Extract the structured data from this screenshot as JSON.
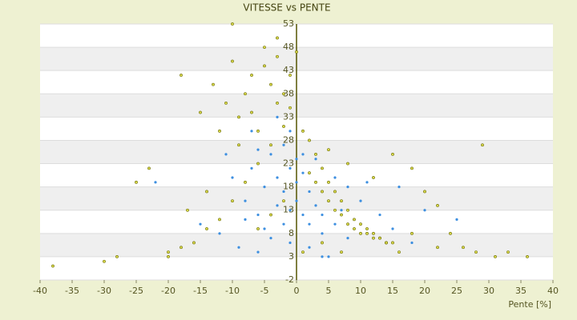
{
  "chart_data": {
    "type": "scatter",
    "title": "VITESSE vs PENTE",
    "x_label": "Pente [%]",
    "xlim": [
      -40,
      40
    ],
    "xticks": [
      -40,
      -35,
      -30,
      -25,
      -20,
      -15,
      -10,
      -5,
      0,
      5,
      10,
      15,
      20,
      25,
      30,
      35,
      40
    ],
    "ylim": [
      -2,
      53
    ],
    "yticks": [
      -2,
      3,
      8,
      13,
      18,
      23,
      28,
      33,
      38,
      43,
      48,
      53
    ],
    "series": [
      {
        "color": "#3d8fe0",
        "x": [
          -10,
          -8,
          -7,
          -6,
          -5,
          -4,
          -3,
          -3,
          -2,
          -2,
          -1,
          -1,
          0,
          0,
          1,
          1,
          2,
          2,
          3,
          3,
          4,
          4,
          5,
          6,
          7,
          8,
          9,
          10,
          12,
          -12,
          -9,
          -6,
          -4,
          -2,
          -1,
          -3,
          1,
          2,
          5,
          11,
          16,
          -22,
          20,
          25,
          13,
          -15,
          -11,
          -7,
          6,
          3,
          -5,
          -1,
          0,
          4,
          -8,
          15,
          18,
          8,
          -6,
          2
        ],
        "values": [
          20,
          15,
          22,
          12,
          18,
          25,
          14,
          20,
          10,
          17,
          22,
          13,
          19,
          15,
          12,
          21,
          17,
          10,
          14,
          19,
          12,
          8,
          15,
          10,
          13,
          7,
          11,
          15,
          8,
          8,
          5,
          4,
          7,
          27,
          30,
          33,
          25,
          5,
          3,
          19,
          18,
          19,
          13,
          11,
          12,
          10,
          25,
          30,
          20,
          24,
          9,
          6,
          24,
          3,
          11,
          9,
          6,
          18,
          26,
          28
        ]
      },
      {
        "color": "#d8d84a",
        "x": [
          -18,
          -15,
          -13,
          -12,
          -10,
          -9,
          -8,
          -7,
          -6,
          -5,
          -4,
          -4,
          -3,
          -2,
          -2,
          -1,
          -6,
          -8,
          -10,
          -12,
          -14,
          -16,
          -18,
          -20,
          -23,
          -25,
          -28,
          -30,
          -38,
          1,
          2,
          3,
          4,
          5,
          6,
          7,
          8,
          9,
          10,
          11,
          12,
          13,
          14,
          15,
          2,
          4,
          6,
          8,
          10,
          12,
          14,
          3,
          5,
          7,
          9,
          11,
          13,
          5,
          8,
          12,
          15,
          18,
          20,
          22,
          24,
          26,
          28,
          29,
          31,
          33,
          36,
          18,
          22,
          16,
          -3,
          -5,
          0,
          -1,
          -7,
          -9,
          -11,
          -14,
          -17,
          -20,
          -2,
          -4,
          -6,
          1,
          4,
          7,
          -3,
          -10
        ],
        "values": [
          42,
          34,
          40,
          30,
          45,
          27,
          38,
          34,
          30,
          44,
          40,
          27,
          36,
          38,
          31,
          42,
          23,
          19,
          15,
          11,
          9,
          6,
          5,
          4,
          22,
          19,
          3,
          2,
          1,
          30,
          28,
          25,
          22,
          19,
          17,
          15,
          13,
          11,
          10,
          9,
          8,
          7,
          6,
          6,
          21,
          17,
          13,
          10,
          8,
          7,
          6,
          19,
          15,
          12,
          9,
          8,
          7,
          26,
          23,
          20,
          25,
          22,
          17,
          14,
          8,
          5,
          4,
          27,
          3,
          4,
          3,
          8,
          5,
          4,
          46,
          48,
          47,
          35,
          42,
          33,
          36,
          17,
          13,
          3,
          15,
          12,
          9,
          4,
          6,
          4,
          50,
          53
        ]
      }
    ]
  }
}
